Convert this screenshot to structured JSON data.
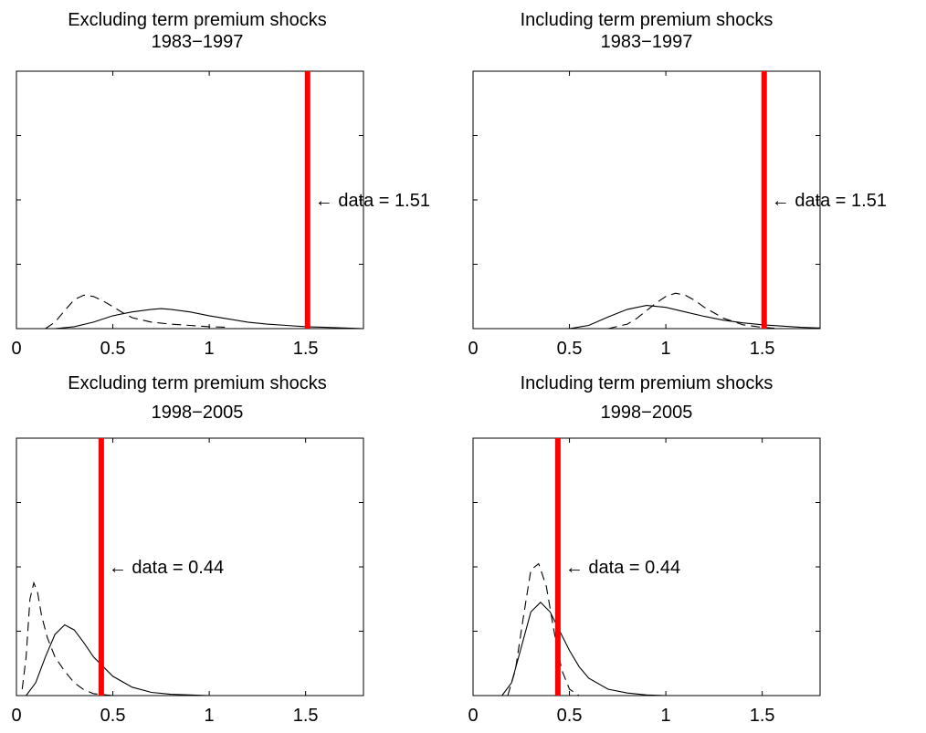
{
  "chart_data": [
    {
      "type": "line",
      "title": "Excluding term premium shocks",
      "subtitle": "1983−1997",
      "xlim": [
        0,
        1.8
      ],
      "ylim": [
        0,
        4
      ],
      "xticks": [
        0,
        0.5,
        1,
        1.5
      ],
      "xtick_labels": [
        "0",
        "0.5",
        "1",
        "1.5"
      ],
      "yticks": [
        1,
        2,
        3
      ],
      "grid": false,
      "series": [
        {
          "style": "solid",
          "x": [
            0.2,
            0.3,
            0.4,
            0.5,
            0.6,
            0.7,
            0.75,
            0.8,
            0.9,
            1.0,
            1.1,
            1.2,
            1.3,
            1.4,
            1.5,
            1.6,
            1.7,
            1.8
          ],
          "y": [
            0.0,
            0.03,
            0.1,
            0.2,
            0.26,
            0.3,
            0.31,
            0.3,
            0.26,
            0.2,
            0.15,
            0.1,
            0.07,
            0.05,
            0.03,
            0.02,
            0.01,
            0.0
          ]
        },
        {
          "style": "dashed",
          "x": [
            0.15,
            0.2,
            0.25,
            0.3,
            0.35,
            0.4,
            0.45,
            0.5,
            0.55,
            0.6,
            0.7,
            0.8,
            0.9,
            1.0,
            1.1
          ],
          "y": [
            0.0,
            0.1,
            0.28,
            0.45,
            0.52,
            0.5,
            0.43,
            0.34,
            0.25,
            0.17,
            0.1,
            0.07,
            0.05,
            0.03,
            0.02
          ]
        }
      ],
      "vline": {
        "x": 1.51,
        "color": "#ff0000"
      },
      "annotation": {
        "text": "← data = 1.51",
        "x": 1.51,
        "y": 2.0
      }
    },
    {
      "type": "line",
      "title": "Including term premium shocks",
      "subtitle": "1983−1997",
      "xlim": [
        0,
        1.8
      ],
      "ylim": [
        0,
        4
      ],
      "xticks": [
        0,
        0.5,
        1,
        1.5
      ],
      "xtick_labels": [
        "0",
        "0.5",
        "1",
        "1.5"
      ],
      "yticks": [
        1,
        2,
        3
      ],
      "grid": false,
      "series": [
        {
          "style": "solid",
          "x": [
            0.5,
            0.6,
            0.7,
            0.8,
            0.9,
            1.0,
            1.1,
            1.2,
            1.3,
            1.4,
            1.5,
            1.6,
            1.7,
            1.8
          ],
          "y": [
            0.0,
            0.05,
            0.18,
            0.3,
            0.36,
            0.33,
            0.26,
            0.19,
            0.13,
            0.09,
            0.06,
            0.04,
            0.02,
            0.01
          ]
        },
        {
          "style": "dashed",
          "x": [
            0.7,
            0.8,
            0.85,
            0.9,
            0.95,
            1.0,
            1.05,
            1.1,
            1.15,
            1.2,
            1.3,
            1.4,
            1.5,
            1.6
          ],
          "y": [
            0.0,
            0.07,
            0.16,
            0.28,
            0.4,
            0.5,
            0.55,
            0.52,
            0.44,
            0.33,
            0.16,
            0.06,
            0.02,
            0.0
          ]
        }
      ],
      "vline": {
        "x": 1.51,
        "color": "#ff0000"
      },
      "annotation": {
        "text": "← data = 1.51",
        "x": 1.51,
        "y": 2.0
      }
    },
    {
      "type": "line",
      "title": "Excluding term premium shocks",
      "subtitle": "1998−2005",
      "xlim": [
        0,
        1.8
      ],
      "ylim": [
        0,
        4
      ],
      "xticks": [
        0,
        0.5,
        1,
        1.5
      ],
      "xtick_labels": [
        "0",
        "0.5",
        "1",
        "1.5"
      ],
      "yticks": [
        1,
        2,
        3
      ],
      "grid": false,
      "series": [
        {
          "style": "solid",
          "x": [
            0.05,
            0.1,
            0.15,
            0.2,
            0.25,
            0.3,
            0.35,
            0.4,
            0.5,
            0.6,
            0.7,
            0.8,
            0.9,
            1.0
          ],
          "y": [
            0.0,
            0.2,
            0.6,
            0.95,
            1.1,
            1.02,
            0.82,
            0.6,
            0.3,
            0.13,
            0.05,
            0.02,
            0.01,
            0.0
          ]
        },
        {
          "style": "dashed",
          "x": [
            0.03,
            0.05,
            0.07,
            0.09,
            0.11,
            0.13,
            0.16,
            0.2,
            0.25,
            0.3,
            0.35,
            0.4,
            0.5
          ],
          "y": [
            0.1,
            0.6,
            1.5,
            1.75,
            1.6,
            1.25,
            0.9,
            0.6,
            0.38,
            0.2,
            0.09,
            0.03,
            0.0
          ]
        }
      ],
      "vline": {
        "x": 0.44,
        "color": "#ff0000"
      },
      "annotation": {
        "text": "← data = 0.44",
        "x": 0.44,
        "y": 2.0
      }
    },
    {
      "type": "line",
      "title": "Including term premium shocks",
      "subtitle": "1998−2005",
      "xlim": [
        0,
        1.8
      ],
      "ylim": [
        0,
        4
      ],
      "xticks": [
        0,
        0.5,
        1,
        1.5
      ],
      "xtick_labels": [
        "0",
        "0.5",
        "1",
        "1.5"
      ],
      "yticks": [
        1,
        2,
        3
      ],
      "grid": false,
      "series": [
        {
          "style": "solid",
          "x": [
            0.15,
            0.2,
            0.25,
            0.3,
            0.35,
            0.4,
            0.45,
            0.5,
            0.55,
            0.6,
            0.7,
            0.8,
            0.9,
            1.0
          ],
          "y": [
            0.0,
            0.2,
            0.75,
            1.3,
            1.45,
            1.3,
            1.0,
            0.7,
            0.45,
            0.27,
            0.1,
            0.04,
            0.01,
            0.0
          ]
        },
        {
          "style": "dashed",
          "x": [
            0.18,
            0.22,
            0.26,
            0.3,
            0.34,
            0.38,
            0.42,
            0.46,
            0.5,
            0.55
          ],
          "y": [
            0.0,
            0.4,
            1.2,
            1.95,
            2.05,
            1.7,
            1.0,
            0.4,
            0.1,
            0.0
          ]
        }
      ],
      "vline": {
        "x": 0.44,
        "color": "#ff0000"
      },
      "annotation": {
        "text": "← data = 0.44",
        "x": 0.44,
        "y": 2.0
      }
    }
  ]
}
